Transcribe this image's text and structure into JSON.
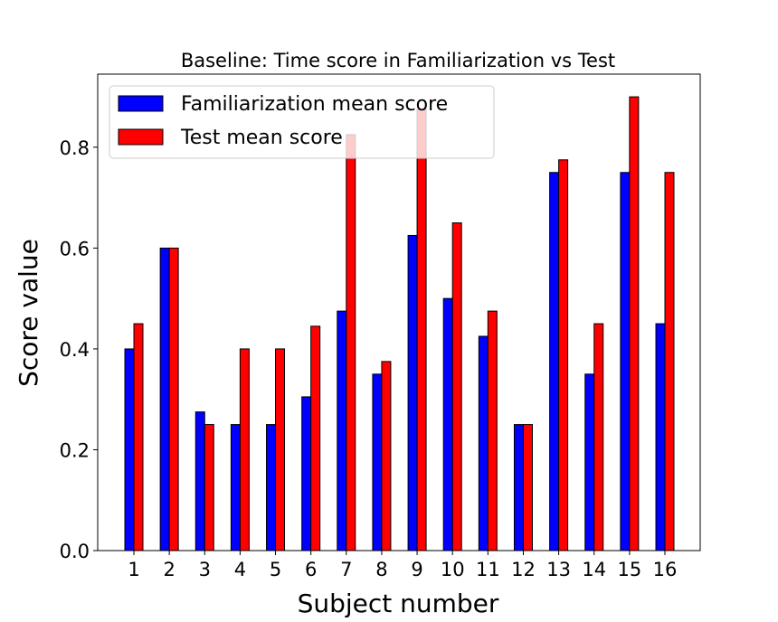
{
  "chart_data": {
    "type": "bar",
    "title": "Baseline: Time score in Familiarization vs Test",
    "xlabel": "Subject number",
    "ylabel": "Score value",
    "categories": [
      "1",
      "2",
      "3",
      "4",
      "5",
      "6",
      "7",
      "8",
      "9",
      "10",
      "11",
      "12",
      "13",
      "14",
      "15",
      "16"
    ],
    "series": [
      {
        "name": "Familiarization mean score",
        "color": "#0000ff",
        "values": [
          0.4,
          0.6,
          0.275,
          0.25,
          0.25,
          0.305,
          0.475,
          0.35,
          0.625,
          0.5,
          0.425,
          0.25,
          0.75,
          0.35,
          0.75,
          0.45
        ]
      },
      {
        "name": "Test mean score",
        "color": "#ff0000",
        "values": [
          0.45,
          0.6,
          0.25,
          0.4,
          0.4,
          0.445,
          0.825,
          0.375,
          0.875,
          0.65,
          0.475,
          0.25,
          0.775,
          0.45,
          0.9,
          0.75
        ]
      }
    ],
    "yticks": [
      "0.0",
      "0.2",
      "0.4",
      "0.6",
      "0.8"
    ],
    "ylim": [
      0,
      0.945
    ],
    "grid": false,
    "legend_position": "top-left"
  }
}
